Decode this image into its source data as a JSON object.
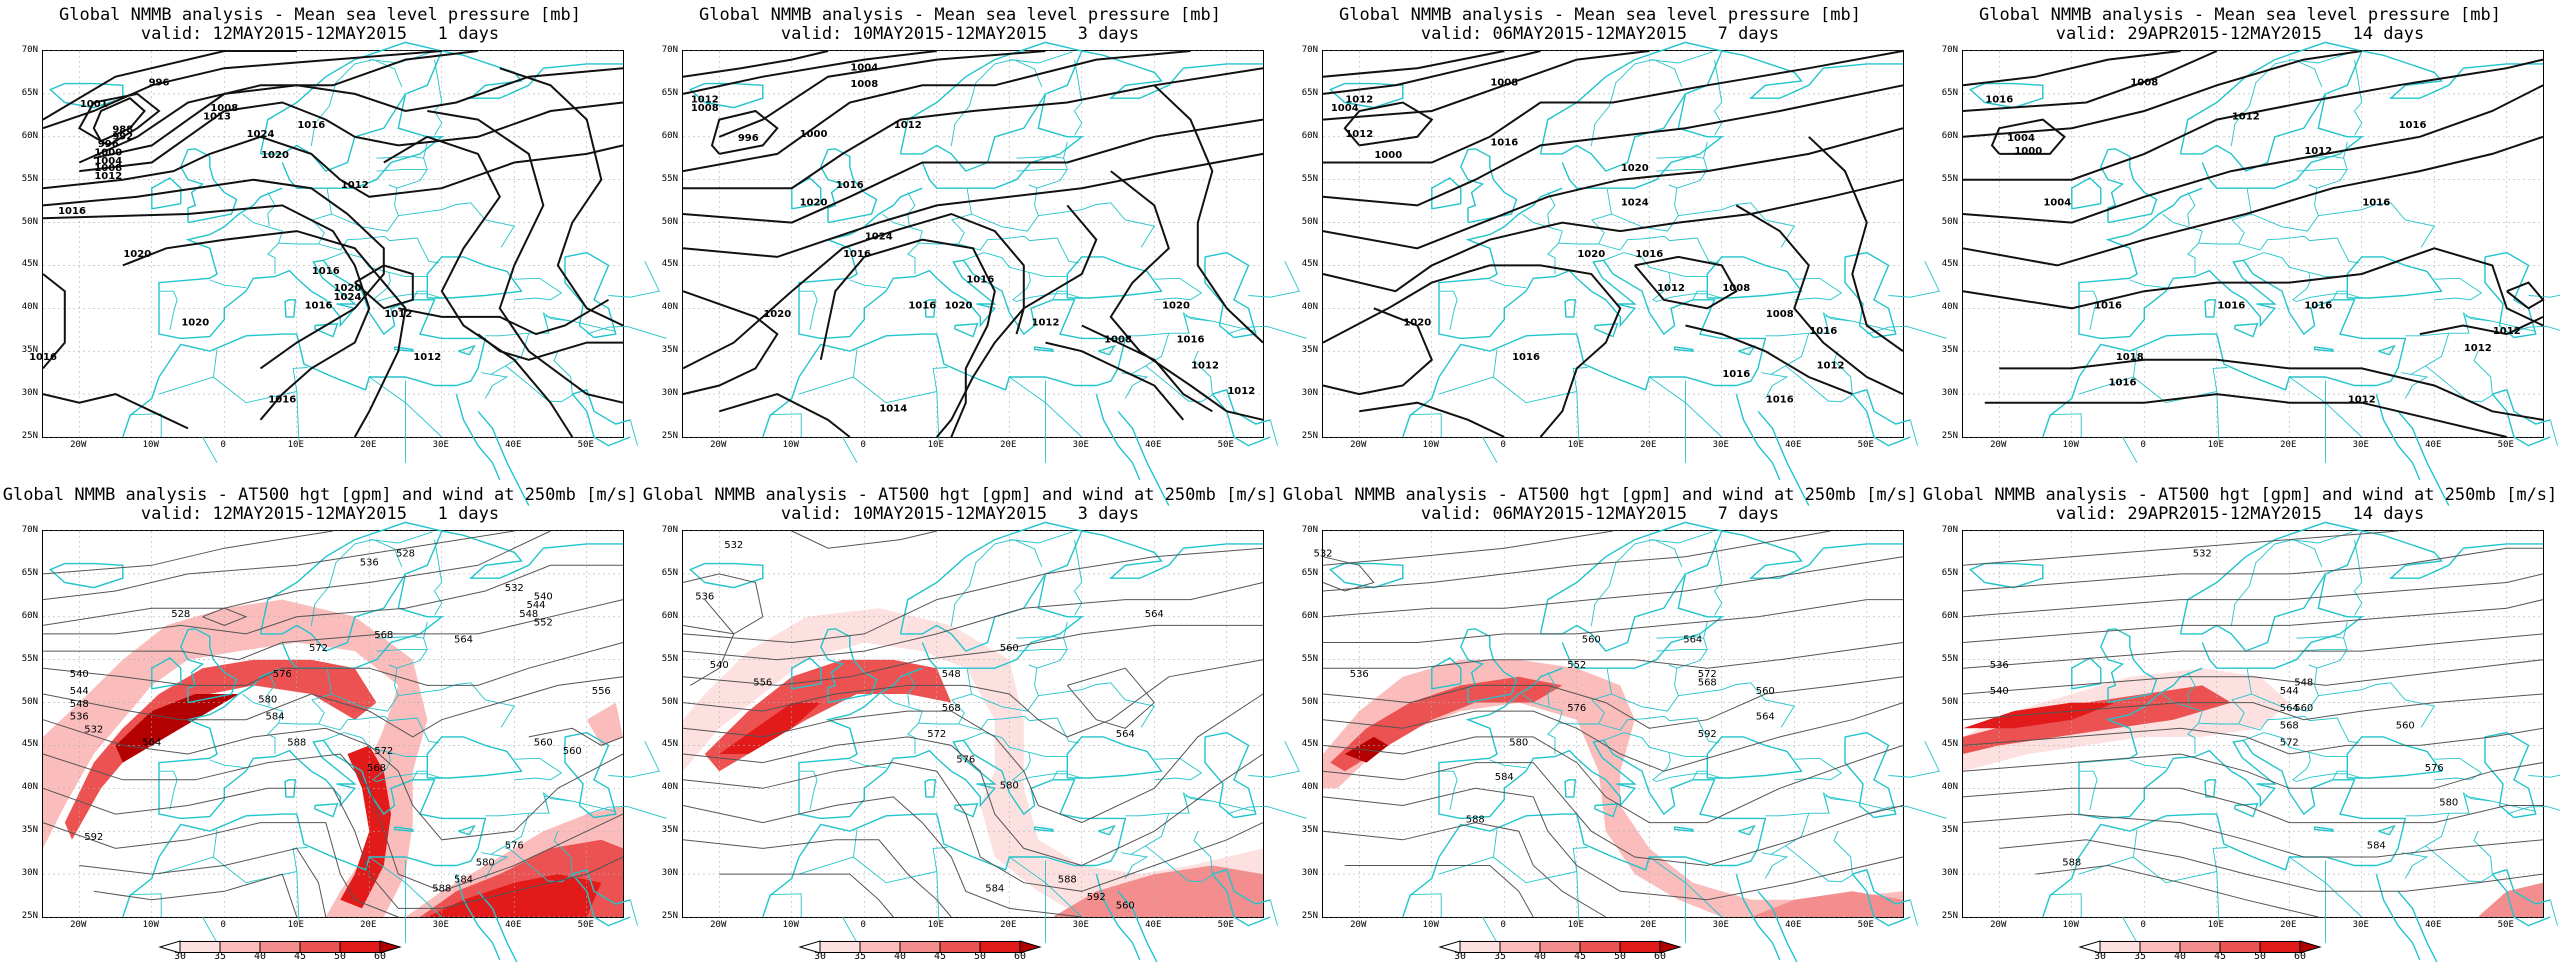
{
  "panels_top": [
    {
      "line1": "Global NMMB analysis - Mean sea level pressure [mb]",
      "line2": "valid: 12MAY2015-12MAY2015   1 days",
      "isobar_labels": [
        "996",
        "1001",
        "1008",
        "1013",
        "988",
        "992",
        "996",
        "1000",
        "1004",
        "1008",
        "1012",
        "1016",
        "1020",
        "1024",
        "1016",
        "1020",
        "1012",
        "1016",
        "1020",
        "1024",
        "1016",
        "1012",
        "1020",
        "1016",
        "1012",
        "1016"
      ]
    },
    {
      "line1": "Global NMMB analysis - Mean sea level pressure [mb]",
      "line2": "valid: 10MAY2015-12MAY2015   3 days",
      "isobar_labels": [
        "1012",
        "1008",
        "1004",
        "1008",
        "1000",
        "996",
        "1012",
        "1016",
        "1020",
        "1024",
        "1016",
        "1020",
        "1016",
        "1020",
        "1016",
        "1012",
        "1008",
        "1020",
        "1016",
        "1012",
        "1012",
        "1014"
      ]
    },
    {
      "line1": "Global NMMB analysis - Mean sea level pressure [mb]",
      "line2": "valid: 06MAY2015-12MAY2015   7 days",
      "isobar_labels": [
        "1012",
        "1004",
        "1008",
        "1012",
        "1000",
        "1016",
        "1020",
        "1024",
        "1020",
        "1016",
        "1020",
        "1016",
        "1012",
        "1008",
        "1008",
        "1016",
        "1016",
        "1012",
        "1016"
      ]
    },
    {
      "line1": "Global NMMB analysis - Mean sea level pressure [mb]",
      "line2": "valid: 29APR2015-12MAY2015   14 days",
      "isobar_labels": [
        "1016",
        "1008",
        "1012",
        "1004",
        "1000",
        "1004",
        "1012",
        "1016",
        "1016",
        "1016",
        "1016",
        "1016",
        "1012",
        "1018",
        "1012",
        "1016",
        "1012"
      ]
    }
  ],
  "panels_bottom": [
    {
      "line1": "Global NMMB analysis - AT500 hgt [gpm] and wind at 250mb [m/s]",
      "line2": "valid: 12MAY2015-12MAY2015   1 days",
      "contour_labels": [
        "528",
        "540",
        "544",
        "548",
        "536",
        "532",
        "528",
        "536",
        "532",
        "540",
        "544",
        "548",
        "552",
        "556",
        "560",
        "564",
        "568",
        "572",
        "576",
        "580",
        "584",
        "588",
        "592",
        "560",
        "564",
        "568",
        "572",
        "576",
        "580",
        "584",
        "588"
      ]
    },
    {
      "line1": "Global NMMB analysis - AT500 hgt [gpm] and wind at 250mb [m/s]",
      "line2": "valid: 10MAY2015-12MAY2015   3 days",
      "contour_labels": [
        "532",
        "536",
        "540",
        "548",
        "556",
        "560",
        "564",
        "568",
        "572",
        "576",
        "580",
        "584",
        "588",
        "592",
        "560",
        "564"
      ]
    },
    {
      "line1": "Global NMMB analysis - AT500 hgt [gpm] and wind at 250mb [m/s]",
      "line2": "valid: 06MAY2015-12MAY2015   7 days",
      "contour_labels": [
        "532",
        "536",
        "552",
        "560",
        "564",
        "568",
        "572",
        "576",
        "580",
        "584",
        "588",
        "592",
        "560",
        "564"
      ]
    },
    {
      "line1": "Global NMMB analysis - AT500 hgt [gpm] and wind at 250mb [m/s]",
      "line2": "valid: 29APR2015-12MAY2015   14 days",
      "contour_labels": [
        "532",
        "536",
        "540",
        "544",
        "548",
        "560",
        "564",
        "568",
        "572",
        "576",
        "580",
        "584",
        "588",
        "560"
      ]
    }
  ],
  "lat_labels": [
    "70N",
    "65N",
    "60N",
    "55N",
    "50N",
    "45N",
    "40N",
    "35N",
    "30N",
    "25N"
  ],
  "lon_labels": [
    "20W",
    "10W",
    "0",
    "10E",
    "20E",
    "30E",
    "40E",
    "50E"
  ],
  "colorbar": {
    "labels": [
      "30",
      "35",
      "40",
      "45",
      "50",
      "60"
    ],
    "colors": [
      "#ffffff",
      "#fde1e1",
      "#fbbcbc",
      "#f48e8e",
      "#ec5252",
      "#e21a1a",
      "#b30000"
    ]
  },
  "colors": {
    "coast": "#22c4cc",
    "jet_strong": "#c40000",
    "grid": "#b0b0b0"
  }
}
